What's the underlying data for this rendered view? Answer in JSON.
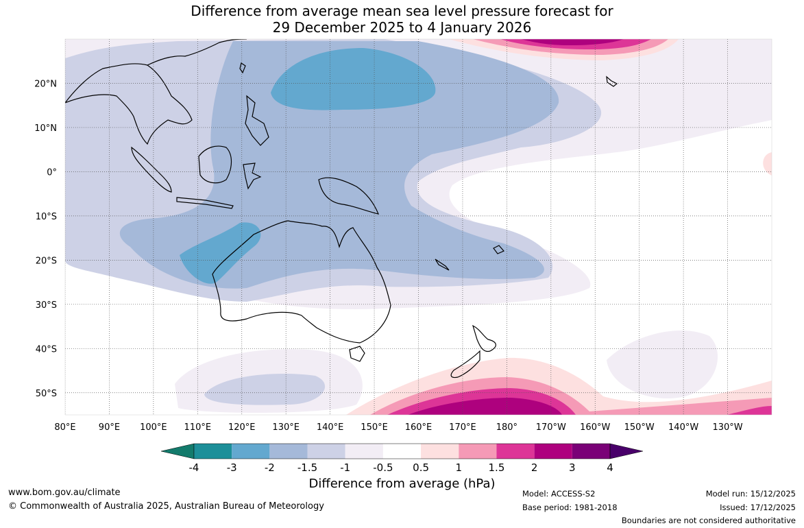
{
  "title": {
    "line1": "Difference from average mean sea level pressure forecast for",
    "line2": "29 December 2025 to 4 January 2026"
  },
  "map": {
    "lon_labels": [
      "80°E",
      "90°E",
      "100°E",
      "110°E",
      "120°E",
      "130°E",
      "140°E",
      "150°E",
      "160°E",
      "170°E",
      "180°",
      "170°W",
      "160°W",
      "150°W",
      "140°W",
      "130°W"
    ],
    "lat_labels": [
      "20°N",
      "10°N",
      "0°",
      "10°S",
      "20°S",
      "30°S",
      "40°S",
      "50°S"
    ],
    "lon_values": [
      80,
      90,
      100,
      110,
      120,
      130,
      140,
      150,
      160,
      170,
      180,
      190,
      200,
      210,
      220,
      230
    ],
    "lat_values": [
      20,
      10,
      0,
      -10,
      -20,
      -30,
      -40,
      -50
    ],
    "lon_range": [
      80,
      240
    ],
    "lat_range": [
      -55,
      30
    ],
    "land_outline_color": "#000000"
  },
  "colorbar": {
    "ticks": [
      "-4",
      "-3",
      "-2",
      "-1.5",
      "-1",
      "-0.5",
      "0.5",
      "1",
      "1.5",
      "2",
      "3",
      "4"
    ],
    "colors": [
      "#137b6c",
      "#1d8f99",
      "#63a8cf",
      "#a5b9d9",
      "#cdd1e6",
      "#f2edf5",
      "#ffffff",
      "#fde0e0",
      "#f59ab6",
      "#dd3597",
      "#ae017e",
      "#7a0177",
      "#49006a"
    ],
    "label": "Difference from average (hPa)"
  },
  "footer": {
    "url": "www.bom.gov.au/climate",
    "copyright": "© Commonwealth of Australia 2025, Australian Bureau of Meteorology",
    "model": "Model: ACCESS-S2",
    "base_period": "Base period: 1981-2018",
    "model_run": "Model run: 15/12/2025",
    "issued": "Issued: 17/12/2025",
    "disclaimer": "Boundaries are not considered authoritative"
  }
}
